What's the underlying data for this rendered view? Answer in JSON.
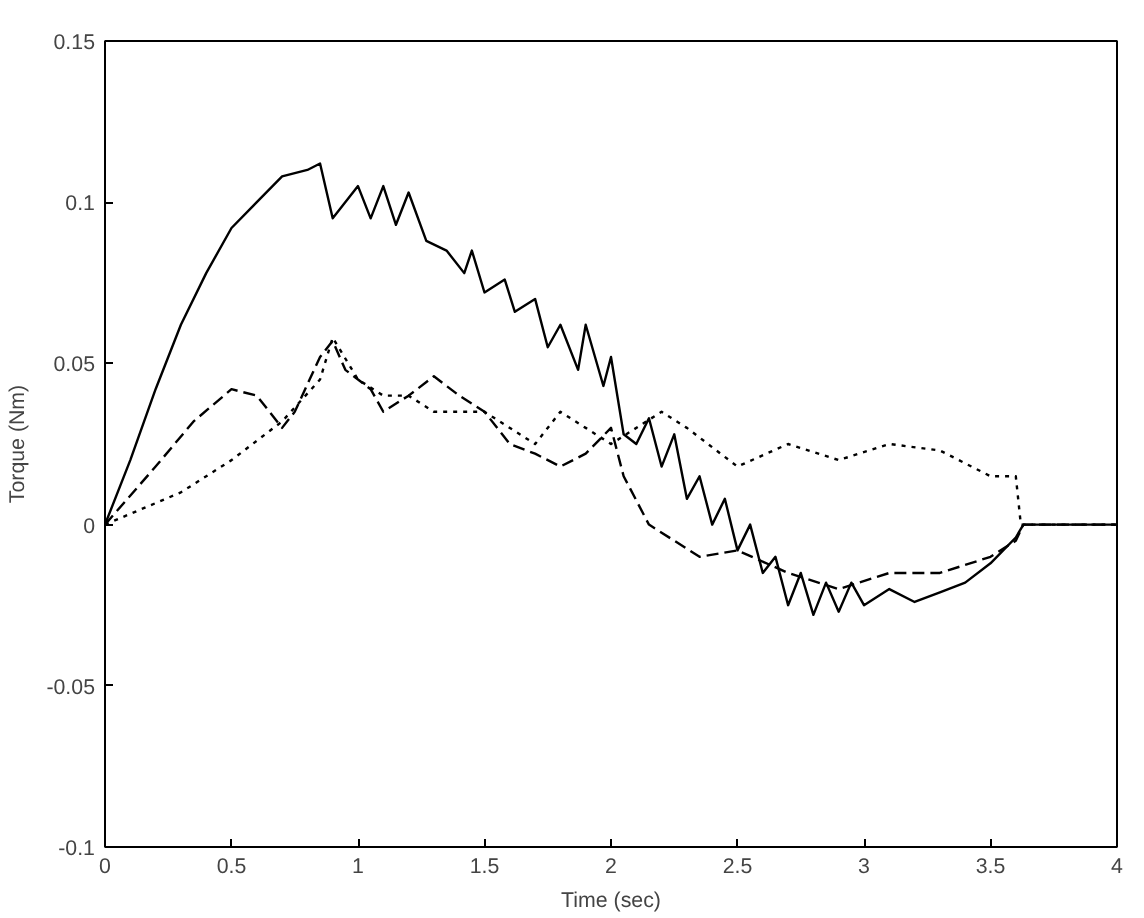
{
  "chart_data": {
    "type": "line",
    "xlabel": "Time (sec)",
    "ylabel": "Torque (Nm)",
    "xlim": [
      0,
      4
    ],
    "ylim": [
      -0.1,
      0.15
    ],
    "xticks": [
      0,
      0.5,
      1,
      1.5,
      2,
      2.5,
      3,
      3.5,
      4
    ],
    "yticks": [
      -0.1,
      -0.05,
      0,
      0.05,
      0.1,
      0.15
    ],
    "grid": false,
    "marker": "none",
    "series": [
      {
        "color": "#000000",
        "line_style": "solid",
        "x": [
          0,
          0.1,
          0.2,
          0.3,
          0.4,
          0.5,
          0.6,
          0.7,
          0.8,
          0.85,
          0.9,
          1.0,
          1.05,
          1.1,
          1.15,
          1.2,
          1.27,
          1.35,
          1.42,
          1.45,
          1.5,
          1.58,
          1.62,
          1.7,
          1.75,
          1.8,
          1.87,
          1.9,
          1.97,
          2.0,
          2.05,
          2.1,
          2.15,
          2.2,
          2.25,
          2.3,
          2.35,
          2.4,
          2.45,
          2.5,
          2.55,
          2.6,
          2.65,
          2.7,
          2.75,
          2.8,
          2.85,
          2.9,
          2.95,
          3.0,
          3.1,
          3.2,
          3.3,
          3.4,
          3.5,
          3.6,
          3.63,
          4.0
        ],
        "values": [
          0,
          0.02,
          0.042,
          0.062,
          0.078,
          0.092,
          0.1,
          0.108,
          0.11,
          0.112,
          0.095,
          0.105,
          0.095,
          0.105,
          0.093,
          0.103,
          0.088,
          0.085,
          0.078,
          0.085,
          0.072,
          0.076,
          0.066,
          0.07,
          0.055,
          0.062,
          0.048,
          0.062,
          0.043,
          0.052,
          0.028,
          0.025,
          0.033,
          0.018,
          0.028,
          0.008,
          0.015,
          0.0,
          0.008,
          -0.008,
          0.0,
          -0.015,
          -0.01,
          -0.025,
          -0.015,
          -0.028,
          -0.018,
          -0.027,
          -0.018,
          -0.025,
          -0.02,
          -0.024,
          -0.021,
          -0.018,
          -0.012,
          -0.004,
          0,
          0
        ]
      },
      {
        "color": "#000000",
        "line_style": "dashed",
        "x": [
          0,
          0.2,
          0.35,
          0.5,
          0.6,
          0.7,
          0.75,
          0.85,
          0.9,
          0.95,
          1.0,
          1.05,
          1.1,
          1.2,
          1.3,
          1.4,
          1.5,
          1.6,
          1.7,
          1.8,
          1.9,
          2.0,
          2.05,
          2.15,
          2.25,
          2.35,
          2.5,
          2.7,
          2.9,
          3.1,
          3.3,
          3.5,
          3.6,
          3.63,
          4.0
        ],
        "values": [
          0,
          0.018,
          0.032,
          0.042,
          0.04,
          0.03,
          0.035,
          0.052,
          0.057,
          0.048,
          0.045,
          0.042,
          0.035,
          0.04,
          0.046,
          0.04,
          0.035,
          0.025,
          0.022,
          0.018,
          0.022,
          0.03,
          0.015,
          0.0,
          -0.005,
          -0.01,
          -0.008,
          -0.015,
          -0.02,
          -0.015,
          -0.015,
          -0.01,
          -0.005,
          0,
          0
        ]
      },
      {
        "color": "#000000",
        "line_style": "dotted",
        "x": [
          0,
          0.3,
          0.5,
          0.7,
          0.85,
          0.9,
          1.0,
          1.1,
          1.2,
          1.3,
          1.5,
          1.7,
          1.8,
          1.9,
          2.0,
          2.2,
          2.3,
          2.5,
          2.7,
          2.9,
          3.1,
          3.3,
          3.5,
          3.6,
          3.62,
          4.0
        ],
        "values": [
          0,
          0.01,
          0.02,
          0.032,
          0.045,
          0.058,
          0.045,
          0.04,
          0.04,
          0.035,
          0.035,
          0.025,
          0.035,
          0.03,
          0.025,
          0.035,
          0.03,
          0.018,
          0.025,
          0.02,
          0.025,
          0.023,
          0.015,
          0.015,
          0,
          0
        ]
      }
    ]
  }
}
